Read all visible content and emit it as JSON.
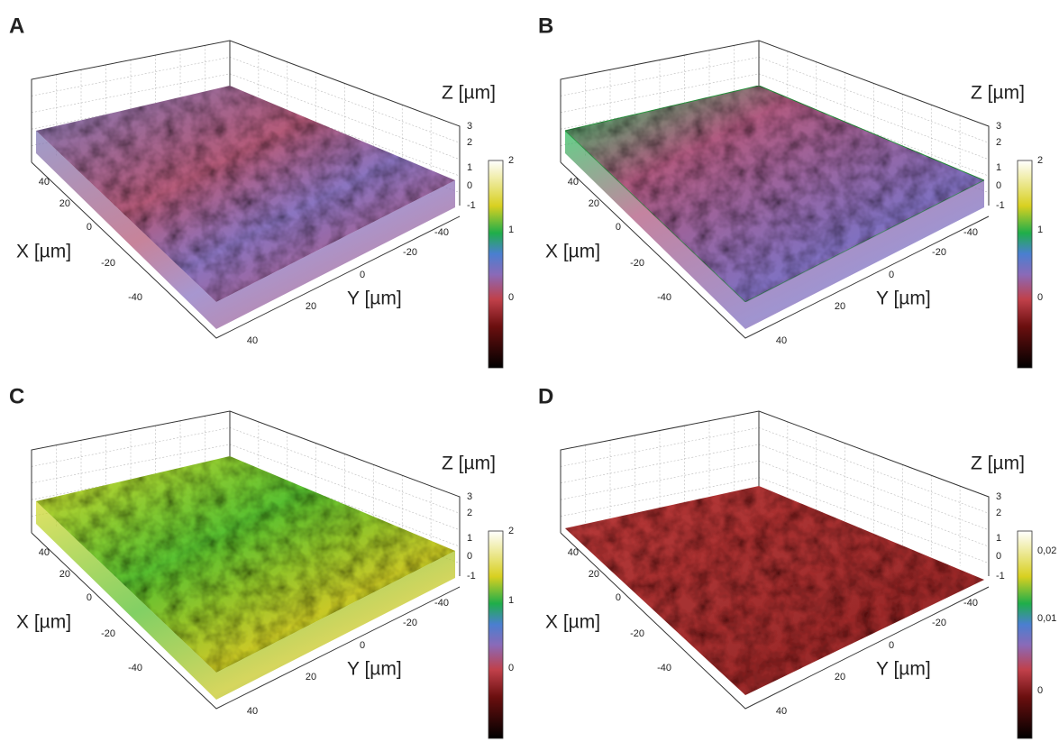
{
  "panels": [
    {
      "label": "A",
      "x_label": "X [µm]",
      "y_label": "Y [µm]",
      "z_label": "Z [µm]",
      "x_ticks": [
        40,
        20,
        0,
        -20,
        -40
      ],
      "y_ticks": [
        -40,
        -20,
        0,
        20,
        40
      ],
      "z_ticks": [
        3,
        2,
        1,
        0,
        -1
      ],
      "colorbar_ticks": [
        2,
        1,
        0
      ]
    },
    {
      "label": "B",
      "x_label": "X [µm]",
      "y_label": "Y [µm]",
      "z_label": "Z [µm]",
      "x_ticks": [
        40,
        20,
        0,
        -20,
        -40
      ],
      "y_ticks": [
        -40,
        -20,
        0,
        20,
        40
      ],
      "z_ticks": [
        3,
        2,
        1,
        0,
        -1
      ],
      "colorbar_ticks": [
        2,
        1,
        0
      ]
    },
    {
      "label": "C",
      "x_label": "X [µm]",
      "y_label": "Y [µm]",
      "z_label": "Z [µm]",
      "x_ticks": [
        40,
        20,
        0,
        -20,
        -40
      ],
      "y_ticks": [
        -40,
        -20,
        0,
        20,
        40
      ],
      "z_ticks": [
        3,
        2,
        1,
        0,
        -1
      ],
      "colorbar_ticks": [
        2,
        1,
        0
      ]
    },
    {
      "label": "D",
      "x_label": "X [µm]",
      "y_label": "Y [µm]",
      "z_label": "Z [µm]",
      "x_ticks": [
        40,
        20,
        0,
        -20,
        -40
      ],
      "y_ticks": [
        -40,
        -20,
        0,
        20,
        40
      ],
      "z_ticks": [
        3,
        2,
        1,
        0,
        -1
      ],
      "colorbar_ticks": [
        "0,02",
        "0,01",
        "0"
      ]
    }
  ]
}
